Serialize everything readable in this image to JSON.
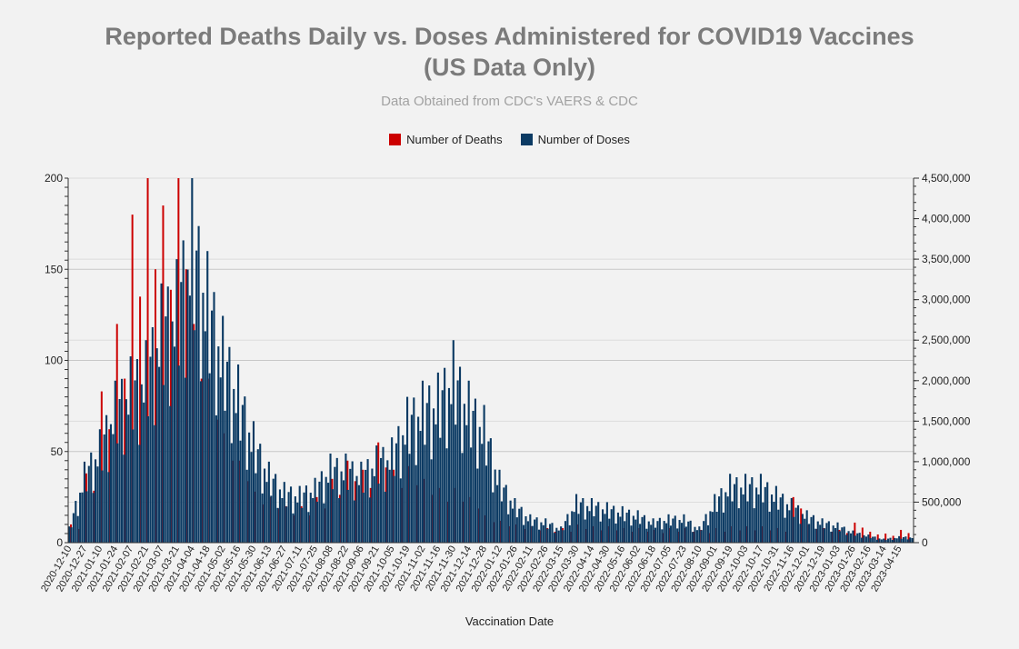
{
  "chart_data": {
    "type": "bar",
    "title_line1": "Reported Deaths Daily vs. Doses Administered for COVID19 Vaccines",
    "title_line2": "(US Data Only)",
    "subtitle": "Data Obtained from CDC's VAERS & CDC",
    "xlabel": "Vaccination Date",
    "legend_position": "top-center",
    "colors": {
      "deaths": "#cc0000",
      "doses": "#0b3a63"
    },
    "categories": [
      "2020-12-10",
      "2020-12-27",
      "2021-01-10",
      "2021-01-24",
      "2021-02-07",
      "2021-02-21",
      "2021-03-07",
      "2021-03-21",
      "2021-04-04",
      "2021-04-18",
      "2021-05-02",
      "2021-05-16",
      "2021-05-30",
      "2021-06-13",
      "2021-06-27",
      "2021-07-11",
      "2021-07-25",
      "2021-08-08",
      "2021-08-22",
      "2021-09-06",
      "2021-09-21",
      "2021-10-05",
      "2021-10-19",
      "2021-11-02",
      "2021-11-16",
      "2021-11-30",
      "2021-12-14",
      "2021-12-28",
      "2022-01-12",
      "2022-01-26",
      "2022-02-11",
      "2022-02-26",
      "2022-03-15",
      "2022-03-30",
      "2022-04-14",
      "2022-04-30",
      "2022-05-16",
      "2022-06-02",
      "2022-06-18",
      "2022-07-05",
      "2022-07-23",
      "2022-08-10",
      "2022-09-01",
      "2022-09-19",
      "2022-10-03",
      "2022-10-17",
      "2022-10-31",
      "2022-11-16",
      "2022-12-01",
      "2022-12-19",
      "2023-01-03",
      "2023-01-26",
      "2023-02-16",
      "2023-03-14",
      "2023-04-15"
    ],
    "series": [
      {
        "name": "Number of Deaths",
        "axis": "left",
        "values": [
          10,
          38,
          83,
          120,
          180,
          200,
          185,
          200,
          120,
          90,
          60,
          45,
          28,
          25,
          20,
          20,
          25,
          35,
          45,
          40,
          55,
          40,
          42,
          35,
          30,
          30,
          25,
          15,
          12,
          10,
          9,
          8,
          8,
          10,
          9,
          9,
          8,
          8,
          7,
          8,
          8,
          7,
          8,
          9,
          9,
          9,
          8,
          25,
          10,
          8,
          7,
          11,
          6,
          5,
          7
        ]
      },
      {
        "name": "Number of Doses",
        "axis": "right",
        "values": [
          200000,
          1000000,
          1400000,
          2000000,
          2300000,
          2500000,
          3200000,
          3500000,
          4500000,
          3600000,
          2800000,
          2200000,
          1500000,
          1000000,
          750000,
          700000,
          800000,
          1100000,
          1100000,
          1000000,
          1200000,
          1300000,
          1800000,
          2000000,
          2100000,
          2500000,
          2000000,
          1700000,
          900000,
          550000,
          350000,
          300000,
          200000,
          600000,
          550000,
          500000,
          450000,
          400000,
          300000,
          350000,
          350000,
          200000,
          600000,
          850000,
          850000,
          850000,
          700000,
          550000,
          400000,
          300000,
          250000,
          150000,
          100000,
          50000,
          80000
        ]
      }
    ],
    "y_left": {
      "range": [
        0,
        200
      ],
      "ticks": [
        "0",
        "50",
        "100",
        "150",
        "200"
      ]
    },
    "y_right": {
      "range": [
        0,
        4500000
      ],
      "ticks": [
        "0",
        "500,000",
        "1,000,000",
        "1,500,000",
        "2,000,000",
        "2,500,000",
        "3,000,000",
        "3,500,000",
        "4,000,000",
        "4,500,000"
      ]
    }
  }
}
